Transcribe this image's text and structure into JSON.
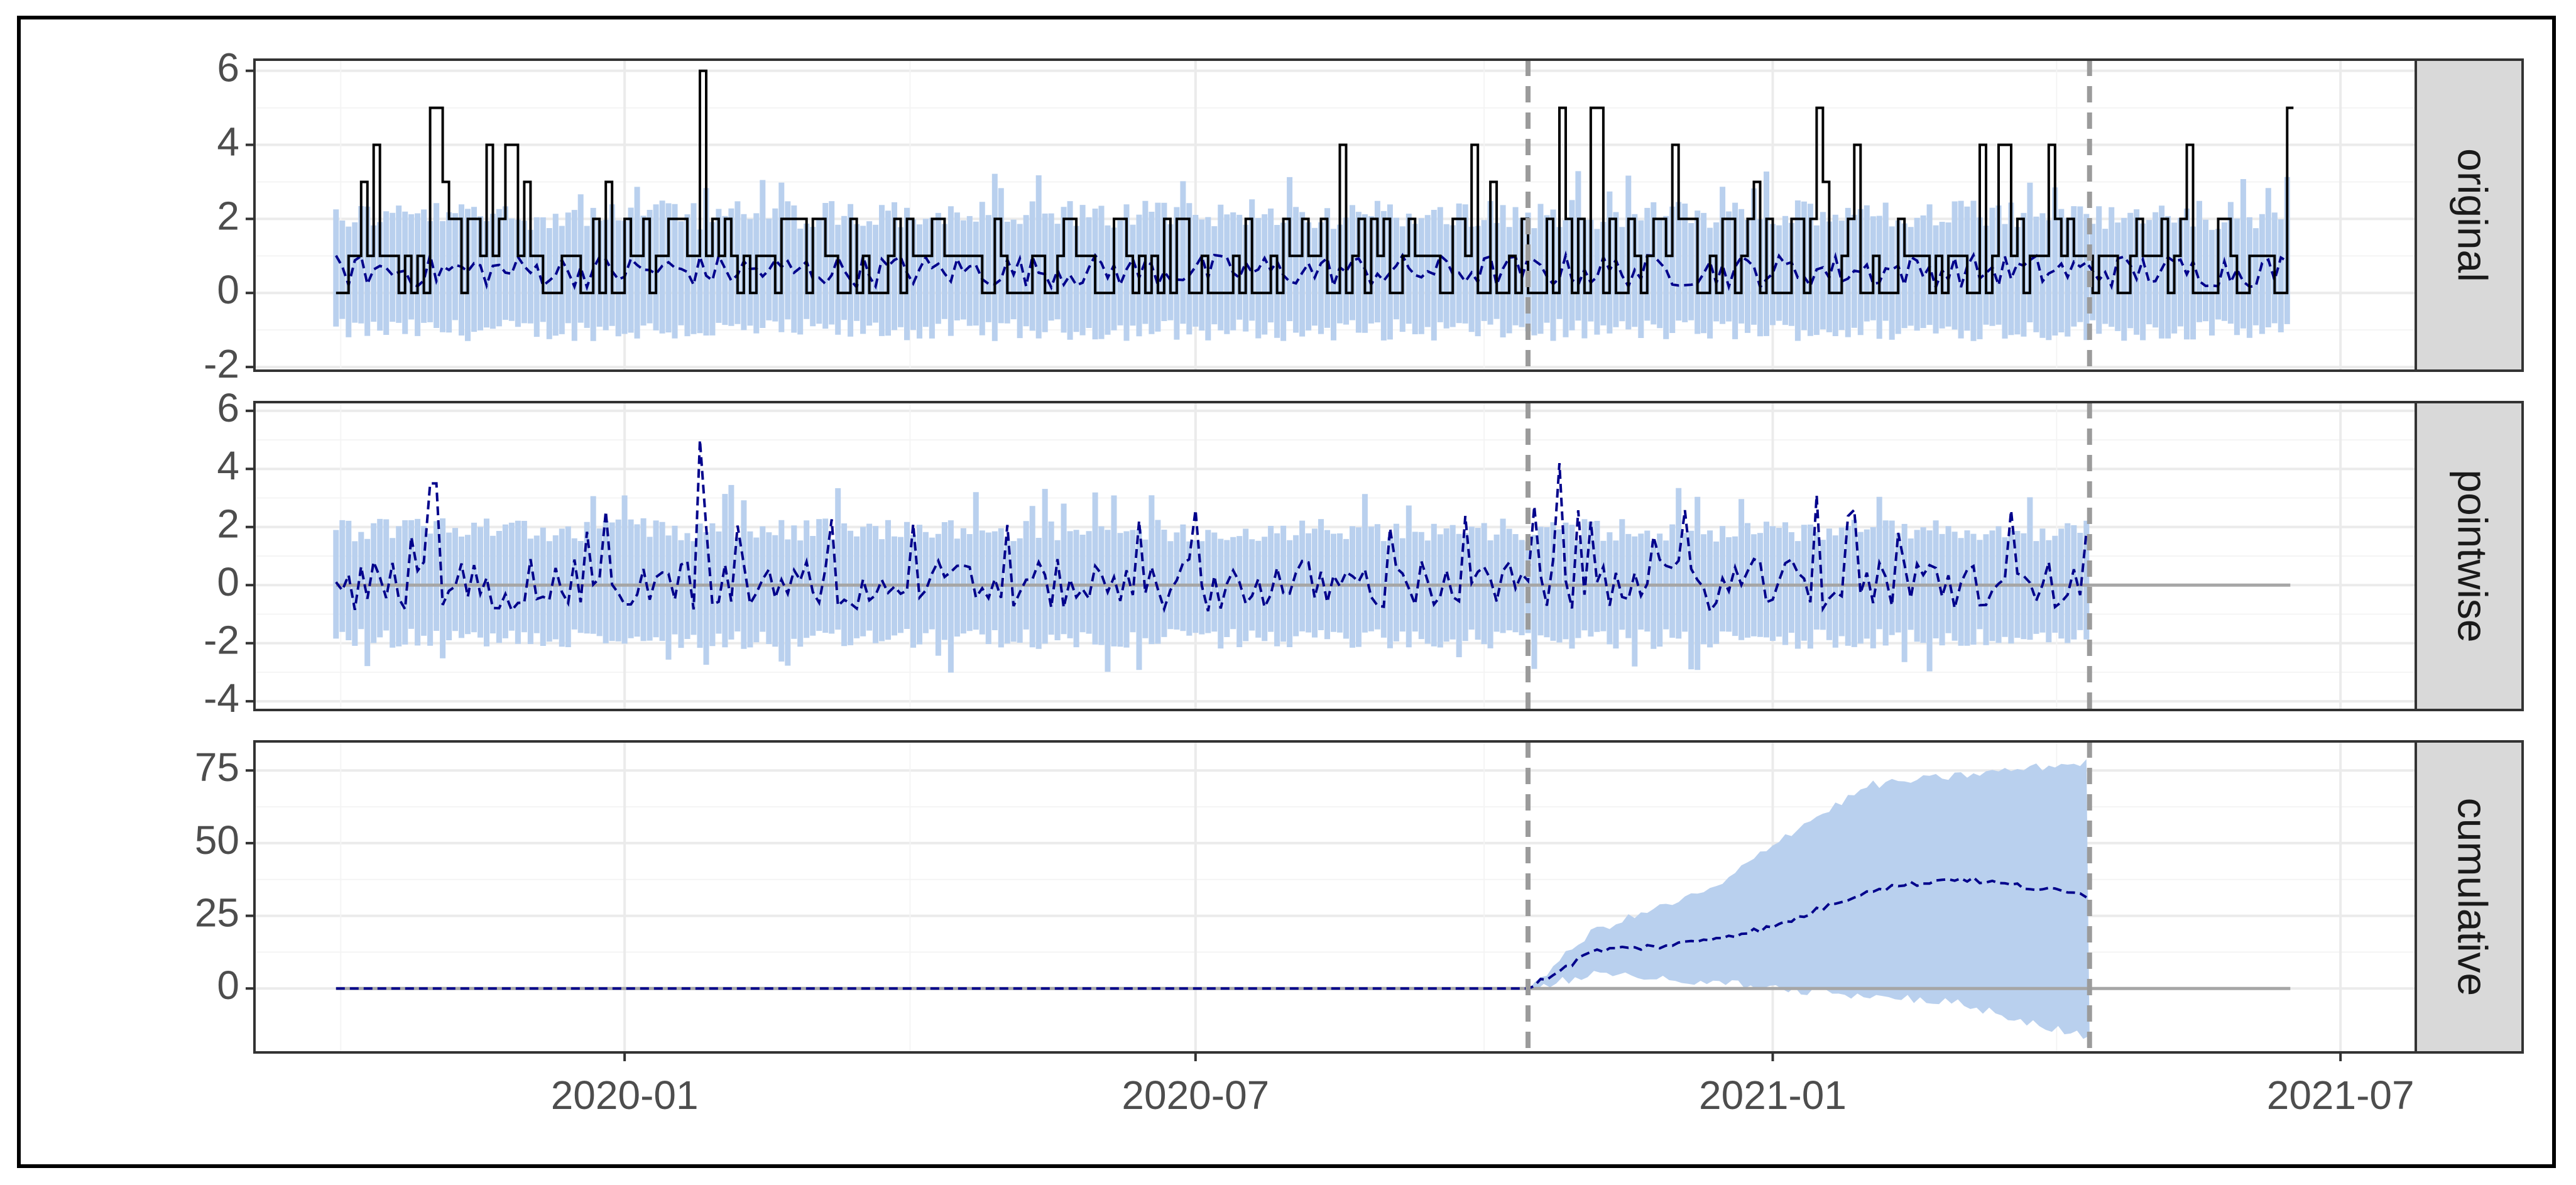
{
  "chart_data": {
    "type": "line",
    "title": "",
    "xlabel": "",
    "ylabel": "",
    "x_axis": {
      "type": "date",
      "range": [
        "2019-09-05",
        "2021-07-25"
      ],
      "ticks": [
        "2020-01-01",
        "2020-07-01",
        "2021-01-01",
        "2021-07-01"
      ],
      "tick_labels": [
        "2020-01",
        "2020-07",
        "2021-01",
        "2021-07"
      ]
    },
    "data_range": {
      "start": "2019-10-01",
      "end": "2021-06-15"
    },
    "intervention_lines": [
      "2020-10-15",
      "2021-04-12"
    ],
    "grid": true,
    "legend": "none",
    "colors": {
      "observed": "#000000",
      "prediction": "#00008b",
      "interval": "#b9d0ee",
      "zero_line": "#a6a6a6",
      "vline": "#9b9b9b",
      "strip_bg": "#d9d9d9",
      "grid": "#ebebeb"
    },
    "panels": [
      {
        "strip": "original",
        "ylim": [
          -2.1,
          6.3
        ],
        "yticks": [
          -2,
          0,
          2,
          4,
          6
        ],
        "ytick_labels": [
          "-2",
          "0",
          "2",
          "4",
          "6"
        ],
        "series": [
          {
            "role": "observed",
            "style": "solid",
            "description_values": {
              "typical_range": [
                0,
                2
              ],
              "max": 6,
              "peaks": [
                [
                  "2019-11-01",
                  5
                ],
                [
                  "2020-01-25",
                  6
                ],
                [
                  "2020-10-25",
                  5
                ],
                [
                  "2020-11-05",
                  5
                ],
                [
                  "2021-01-15",
                  5
                ],
                [
                  "2021-06-14",
                  5
                ]
              ]
            }
          },
          {
            "role": "prediction",
            "style": "dashed",
            "mean_level": 0.6
          },
          {
            "role": "interval",
            "band": [
              -1.3,
              2.5
            ]
          }
        ]
      },
      {
        "strip": "pointwise",
        "ylim": [
          -4.3,
          6.3
        ],
        "yticks": [
          -4,
          -2,
          0,
          2,
          4,
          6
        ],
        "ytick_labels": [
          "-4",
          "-2",
          "0",
          "2",
          "4",
          "6"
        ],
        "series": [
          {
            "role": "prediction",
            "style": "dashed",
            "mean_level": 0,
            "peaks": [
              [
                "2019-11-01",
                3.5
              ],
              [
                "2020-01-25",
                5
              ],
              [
                "2020-10-25",
                4.2
              ],
              [
                "2021-01-15",
                3.1
              ]
            ]
          },
          {
            "role": "interval",
            "band": [
              -2.2,
              2.3
            ]
          },
          {
            "role": "zero_line",
            "value": 0
          }
        ]
      },
      {
        "strip": "cumulative",
        "ylim": [
          -22,
          85
        ],
        "yticks": [
          0,
          25,
          50,
          75
        ],
        "ytick_labels": [
          "0",
          "25",
          "50",
          "75"
        ],
        "series": [
          {
            "role": "prediction",
            "style": "dashed",
            "points": [
              [
                "2019-10-01",
                0
              ],
              [
                "2020-10-15",
                0
              ],
              [
                "2020-11-05",
                13
              ],
              [
                "2020-12-01",
                15
              ],
              [
                "2021-01-01",
                21
              ],
              [
                "2021-02-01",
                34
              ],
              [
                "2021-03-01",
                38
              ],
              [
                "2021-04-12",
                32
              ]
            ]
          },
          {
            "role": "interval",
            "upper": [
              [
                "2020-10-15",
                0
              ],
              [
                "2020-11-05",
                20
              ],
              [
                "2020-12-15",
                35
              ],
              [
                "2021-01-01",
                50
              ],
              [
                "2021-02-01",
                70
              ],
              [
                "2021-04-12",
                78
              ]
            ],
            "lower": [
              [
                "2020-10-15",
                0
              ],
              [
                "2020-11-05",
                5
              ],
              [
                "2020-12-15",
                2
              ],
              [
                "2021-01-01",
                0
              ],
              [
                "2021-03-01",
                -5
              ],
              [
                "2021-04-12",
                -17
              ]
            ]
          },
          {
            "role": "zero_line",
            "value": 0
          }
        ]
      }
    ]
  }
}
